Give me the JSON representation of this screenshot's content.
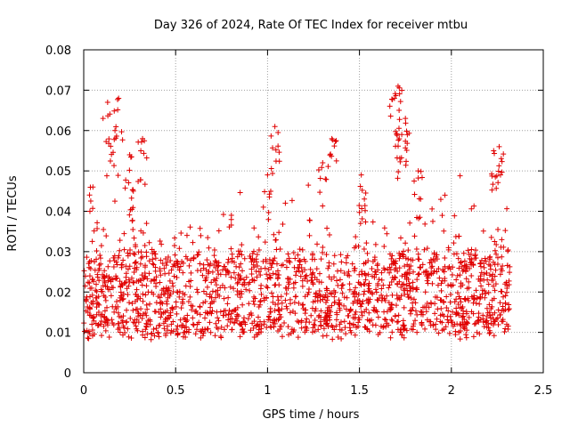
{
  "chart_data": {
    "type": "scatter",
    "title": "Day 326 of 2024, Rate Of TEC Index for receiver mtbu",
    "xlabel": "GPS time / hours",
    "ylabel": "ROTI / TECUs",
    "xlim": [
      0,
      2.5
    ],
    "ylim": [
      0,
      0.08
    ],
    "xticks": [
      0,
      0.5,
      1,
      1.5,
      2,
      2.5
    ],
    "xtick_labels": [
      "0",
      "0.5",
      "1",
      "1.5",
      "2",
      "2.5"
    ],
    "yticks": [
      0,
      0.01,
      0.02,
      0.03,
      0.04,
      0.05,
      0.06,
      0.07,
      0.08
    ],
    "ytick_labels": [
      "0",
      "0.01",
      "0.02",
      "0.03",
      "0.04",
      "0.05",
      "0.06",
      "0.07",
      "0.08"
    ],
    "grid": true,
    "marker": "+",
    "color": "#e00000",
    "approx_points": 1800,
    "x_extent": [
      0,
      2.32
    ],
    "baseline_band": [
      0.01,
      0.03
    ],
    "spike_events": [
      {
        "x": 0.13,
        "y": 0.067
      },
      {
        "x": 0.19,
        "y": 0.068
      },
      {
        "x": 0.17,
        "y": 0.06
      },
      {
        "x": 0.25,
        "y": 0.054
      },
      {
        "x": 0.32,
        "y": 0.058
      },
      {
        "x": 0.27,
        "y": 0.045
      },
      {
        "x": 0.05,
        "y": 0.046
      },
      {
        "x": 1.04,
        "y": 0.061
      },
      {
        "x": 1.0,
        "y": 0.049
      },
      {
        "x": 1.35,
        "y": 0.058
      },
      {
        "x": 1.3,
        "y": 0.052
      },
      {
        "x": 1.69,
        "y": 0.068
      },
      {
        "x": 1.71,
        "y": 0.071
      },
      {
        "x": 1.75,
        "y": 0.063
      },
      {
        "x": 1.73,
        "y": 0.059
      },
      {
        "x": 1.82,
        "y": 0.05
      },
      {
        "x": 1.51,
        "y": 0.049
      },
      {
        "x": 2.23,
        "y": 0.055
      },
      {
        "x": 2.26,
        "y": 0.056
      }
    ]
  }
}
